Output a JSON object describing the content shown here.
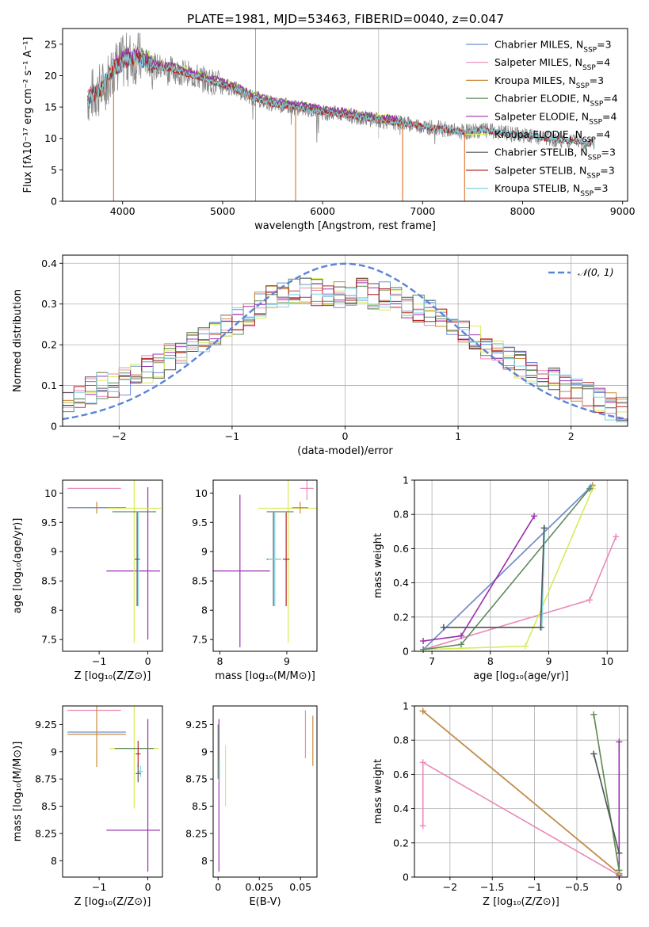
{
  "figure": {
    "title": "PLATE=1981, MJD=53463, FIBERID=0040, z=0.047"
  },
  "colors": {
    "Chabrier MILES": "#6f8fd8",
    "Salpeter MILES": "#e98ab8",
    "Kroupa MILES": "#c98a3a",
    "Chabrier ELODIE": "#5f8a5f",
    "Salpeter ELODIE": "#9b30b0",
    "Kroupa ELODIE": "#d8ec5a",
    "Chabrier STELIB": "#555555",
    "Salpeter STELIB": "#b22222",
    "Kroupa STELIB": "#7fd3e0",
    "data": "#888888",
    "model_orange": "#e07b3a",
    "gaussian": "#5b84d6"
  },
  "chart_data": [
    {
      "id": "spectrum",
      "type": "line",
      "title": "PLATE=1981, MJD=53463, FIBERID=0040, z=0.047",
      "xlabel": "wavelength [Angstrom, rest frame]",
      "ylabel": "Flux [fλ10⁻¹⁷ erg cm⁻² s⁻¹ A⁻¹]",
      "xlim": [
        3400,
        9050
      ],
      "ylim": [
        0,
        27.5
      ],
      "xticks": [
        4000,
        5000,
        6000,
        7000,
        8000,
        9000
      ],
      "yticks": [
        0,
        5,
        10,
        15,
        20,
        25
      ],
      "grid": false,
      "legend_position": "top-right",
      "legend": [
        {
          "label": "Chabrier MILES, N",
          "sub": "SSP",
          "suffix": "=3"
        },
        {
          "label": "Salpeter MILES, N",
          "sub": "SSP",
          "suffix": "=4"
        },
        {
          "label": "Kroupa MILES, N",
          "sub": "SSP",
          "suffix": "=3"
        },
        {
          "label": "Chabrier ELODIE, N",
          "sub": "SSP",
          "suffix": "=4"
        },
        {
          "label": "Salpeter ELODIE, N",
          "sub": "SSP",
          "suffix": "=4"
        },
        {
          "label": "Kroupa ELODIE, N",
          "sub": "SSP",
          "suffix": "=4"
        },
        {
          "label": "Chabrier STELIB, N",
          "sub": "SSP",
          "suffix": "=3"
        },
        {
          "label": "Salpeter STELIB, N",
          "sub": "SSP",
          "suffix": "=3"
        },
        {
          "label": "Kroupa STELIB, N",
          "sub": "SSP",
          "suffix": "=3"
        }
      ],
      "continuum": [
        [
          3650,
          16.5
        ],
        [
          3800,
          18
        ],
        [
          3900,
          21
        ],
        [
          4000,
          22
        ],
        [
          4100,
          23
        ],
        [
          4200,
          22.5
        ],
        [
          4300,
          21.5
        ],
        [
          4500,
          21
        ],
        [
          4700,
          20
        ],
        [
          4900,
          19
        ],
        [
          5100,
          18
        ],
        [
          5300,
          16.5
        ],
        [
          5500,
          15.5
        ],
        [
          5700,
          15
        ],
        [
          6000,
          14.2
        ],
        [
          6300,
          13.6
        ],
        [
          6600,
          12.8
        ],
        [
          6900,
          12.2
        ],
        [
          7200,
          11.5
        ],
        [
          7400,
          11
        ],
        [
          7600,
          11.3
        ],
        [
          8000,
          10.5
        ],
        [
          8400,
          9.7
        ],
        [
          8700,
          9.3
        ]
      ],
      "model_range": [
        3650,
        8700
      ],
      "miles_range": [
        3650,
        7420
      ],
      "elodie_range": [
        3900,
        6800
      ],
      "spikes_down": [
        [
          3910,
          0
        ],
        [
          5730,
          0
        ],
        [
          6800,
          0
        ],
        [
          7420,
          0
        ]
      ]
    },
    {
      "id": "residuals",
      "type": "step",
      "xlabel": "(data-model)/error",
      "ylabel": "Normed distribution",
      "xlim": [
        -2.5,
        2.5
      ],
      "ylim": [
        0,
        0.42
      ],
      "xticks": [
        -2,
        -1,
        0,
        1,
        2
      ],
      "yticks": [
        0.0,
        0.1,
        0.2,
        0.3,
        0.4
      ],
      "grid": true,
      "legend_position": "top-right",
      "legend": [
        "𝒩(0, 1)"
      ],
      "bin_edges_start": -2.5,
      "bin_width": 0.1,
      "base_profile": [
        0.06,
        0.08,
        0.09,
        0.1,
        0.1,
        0.11,
        0.12,
        0.14,
        0.15,
        0.17,
        0.18,
        0.2,
        0.21,
        0.23,
        0.24,
        0.26,
        0.28,
        0.3,
        0.31,
        0.32,
        0.33,
        0.33,
        0.33,
        0.33,
        0.32,
        0.33,
        0.33,
        0.32,
        0.32,
        0.31,
        0.3,
        0.29,
        0.28,
        0.26,
        0.25,
        0.24,
        0.22,
        0.2,
        0.19,
        0.17,
        0.15,
        0.14,
        0.13,
        0.11,
        0.1,
        0.09,
        0.08,
        0.06,
        0.05,
        0.04
      ]
    },
    {
      "id": "age-vs-Z",
      "type": "errorbar",
      "xlabel": "Z [log₁₀(Z/Z⊙)]",
      "ylabel": "age  [log₁₀(age/yr)]",
      "xlim": [
        -1.75,
        0.3
      ],
      "ylim": [
        7.3,
        10.22
      ],
      "xticks": [
        -1,
        0
      ],
      "yticks": [
        7.5,
        8.0,
        8.5,
        9.0,
        9.5,
        10.0
      ],
      "points": [
        {
          "s": "Salpeter MILES",
          "x": -1.1,
          "y": 10.08,
          "xerr": 0.55,
          "yerr": 0.0
        },
        {
          "s": "Kroupa MILES",
          "x": -1.05,
          "y": 9.75,
          "xerr": 0.6,
          "yerr": 0.1
        },
        {
          "s": "Chabrier MILES",
          "x": -1.05,
          "y": 9.75,
          "xerr": 0.6,
          "yerr": 0.0
        },
        {
          "s": "Salpeter ELODIE",
          "x": -0.3,
          "y": 8.67,
          "xerr": 0.55,
          "yerr": 0.0
        },
        {
          "s": "Salpeter ELODIE",
          "x": 0.0,
          "y": 8.8,
          "xerr": 0.0,
          "yerr": 1.3
        },
        {
          "s": "Kroupa ELODIE",
          "x": -0.28,
          "y": 9.74,
          "xerr": 0.55,
          "yerr": 2.3
        },
        {
          "s": "Chabrier ELODIE",
          "x": -0.28,
          "y": 9.68,
          "xerr": 0.45,
          "yerr": 0.0
        },
        {
          "s": "Kroupa STELIB",
          "x": -0.2,
          "y": 8.87,
          "xerr": 0.05,
          "yerr": 0.8
        },
        {
          "s": "Chabrier STELIB",
          "x": -0.22,
          "y": 8.87,
          "xerr": 0.05,
          "yerr": 0.8
        }
      ]
    },
    {
      "id": "age-vs-mass",
      "type": "errorbar",
      "xlabel": "mass [log₁₀(M/M⊙)]",
      "xlim": [
        7.9,
        9.45
      ],
      "ylim": [
        7.3,
        10.22
      ],
      "xticks": [
        8,
        9
      ],
      "yticks": [
        7.5,
        8.0,
        8.5,
        9.0,
        9.5,
        10.0
      ],
      "points": [
        {
          "s": "Salpeter ELODIE",
          "x": 8.3,
          "y": 8.67,
          "xerr": 0.45,
          "yerr": 1.3
        },
        {
          "s": "Kroupa ELODIE",
          "x": 9.02,
          "y": 9.74,
          "xerr": 0.45,
          "yerr": 2.3
        },
        {
          "s": "Kroupa MILES",
          "x": 9.2,
          "y": 9.75,
          "xerr": 0.12,
          "yerr": 0.1
        },
        {
          "s": "Salpeter MILES",
          "x": 9.3,
          "y": 10.08,
          "xerr": 0.1,
          "yerr": 0.2
        },
        {
          "s": "Chabrier ELODIE",
          "x": 8.9,
          "y": 9.68,
          "xerr": 0.2,
          "yerr": 0.0
        },
        {
          "s": "Salpeter STELIB",
          "x": 8.99,
          "y": 8.87,
          "xerr": 0.05,
          "yerr": 0.8
        },
        {
          "s": "Chabrier STELIB",
          "x": 8.8,
          "y": 8.87,
          "xerr": 0.1,
          "yerr": 0.8
        },
        {
          "s": "Kroupa STELIB",
          "x": 8.82,
          "y": 8.87,
          "xerr": 0.1,
          "yerr": 0.8
        }
      ]
    },
    {
      "id": "weight-vs-age",
      "type": "line",
      "xlabel": "age  [log₁₀(age/yr)]",
      "ylabel": "mass weight",
      "xlim": [
        6.7,
        10.35
      ],
      "ylim": [
        0,
        1.0
      ],
      "xticks": [
        7,
        8,
        9,
        10
      ],
      "yticks": [
        0.0,
        0.2,
        0.4,
        0.6,
        0.8,
        1.0
      ],
      "grid": true,
      "series": [
        {
          "s": "Salpeter MILES",
          "x": [
            6.85,
            9.7,
            10.15
          ],
          "y": [
            0.01,
            0.3,
            0.67
          ]
        },
        {
          "s": "Kroupa MILES",
          "x": [
            6.85,
            9.75
          ],
          "y": [
            0.01,
            0.97
          ]
        },
        {
          "s": "Chabrier MILES",
          "x": [
            6.85,
            9.72
          ],
          "y": [
            0.01,
            0.96
          ]
        },
        {
          "s": "Salpeter ELODIE",
          "x": [
            6.85,
            7.5,
            8.75
          ],
          "y": [
            0.06,
            0.09,
            0.79
          ]
        },
        {
          "s": "Kroupa ELODIE",
          "x": [
            6.85,
            8.6,
            9.75
          ],
          "y": [
            0.01,
            0.03,
            0.95
          ]
        },
        {
          "s": "Chabrier ELODIE",
          "x": [
            6.85,
            7.5,
            9.7
          ],
          "y": [
            0.01,
            0.04,
            0.95
          ]
        },
        {
          "s": "Kroupa STELIB",
          "x": [
            7.2,
            8.88,
            8.93
          ],
          "y": [
            0.14,
            0.14,
            0.72
          ]
        },
        {
          "s": "Chabrier STELIB",
          "x": [
            7.2,
            8.86,
            8.92
          ],
          "y": [
            0.14,
            0.14,
            0.72
          ]
        }
      ]
    },
    {
      "id": "mass-vs-Z",
      "type": "errorbar",
      "xlabel": "Z [log₁₀(Z/Z⊙)]",
      "ylabel": "mass [log₁₀(M/M⊙)]",
      "xlim": [
        -1.75,
        0.3
      ],
      "ylim": [
        7.85,
        9.42
      ],
      "xticks": [
        -1,
        0
      ],
      "yticks": [
        8.0,
        8.25,
        8.5,
        8.75,
        9.0,
        9.25
      ],
      "points": [
        {
          "s": "Salpeter MILES",
          "x": -1.1,
          "y": 9.38,
          "xerr": 0.55,
          "yerr": 0.0
        },
        {
          "s": "Chabrier MILES",
          "x": -1.05,
          "y": 9.18,
          "xerr": 0.6,
          "yerr": 0.0
        },
        {
          "s": "Kroupa MILES",
          "x": -1.05,
          "y": 9.16,
          "xerr": 0.6,
          "yerr": 0.3
        },
        {
          "s": "Salpeter ELODIE",
          "x": -0.3,
          "y": 8.28,
          "xerr": 0.55,
          "yerr": 0.0
        },
        {
          "s": "Salpeter ELODIE",
          "x": 0.0,
          "y": 8.6,
          "xerr": 0.0,
          "yerr": 0.7
        },
        {
          "s": "Kroupa ELODIE",
          "x": -0.28,
          "y": 9.03,
          "xerr": 0.5,
          "yerr": 0.55
        },
        {
          "s": "Chabrier ELODIE",
          "x": -0.28,
          "y": 9.03,
          "xerr": 0.4,
          "yerr": 0.0
        },
        {
          "s": "Salpeter STELIB",
          "x": -0.2,
          "y": 8.98,
          "xerr": 0.05,
          "yerr": 0.12
        },
        {
          "s": "Kroupa STELIB",
          "x": -0.15,
          "y": 8.82,
          "xerr": 0.05,
          "yerr": 0.05
        },
        {
          "s": "Chabrier STELIB",
          "x": -0.2,
          "y": 8.8,
          "xerr": 0.05,
          "yerr": 0.08
        }
      ]
    },
    {
      "id": "mass-vs-EBV",
      "type": "errorbar",
      "xlabel": "E(B-V)",
      "xlim": [
        -0.003,
        0.06
      ],
      "ylim": [
        7.85,
        9.42
      ],
      "xticks": [
        0.0,
        0.025,
        0.05
      ],
      "yticks": [
        8.0,
        8.25,
        8.5,
        8.75,
        9.0,
        9.25
      ],
      "points": [
        {
          "s": "Salpeter ELODIE",
          "x": 0.0005,
          "y": 8.6,
          "xerr": 0.0,
          "yerr": 0.7
        },
        {
          "s": "Chabrier ELODIE",
          "x": 0.0,
          "y": 9.0,
          "xerr": 0.0,
          "yerr": 0.25
        },
        {
          "s": "Kroupa ELODIE",
          "x": 0.0045,
          "y": 8.78,
          "xerr": 0.0,
          "yerr": 0.28
        },
        {
          "s": "Kroupa STELIB",
          "x": 0.0008,
          "y": 8.82,
          "xerr": 0.0,
          "yerr": 0.1
        },
        {
          "s": "Salpeter MILES",
          "x": 0.053,
          "y": 9.16,
          "xerr": 0.0,
          "yerr": 0.22
        },
        {
          "s": "Kroupa MILES",
          "x": 0.0575,
          "y": 9.1,
          "xerr": 0.0,
          "yerr": 0.23
        }
      ]
    },
    {
      "id": "weight-vs-Z",
      "type": "line",
      "xlabel": "Z [log₁₀(Z/Z⊙)]",
      "ylabel": "mass weight",
      "xlim": [
        -2.42,
        0.1
      ],
      "ylim": [
        0,
        1.0
      ],
      "xticks": [
        -2.0,
        -1.5,
        -1.0,
        -0.5,
        0.0
      ],
      "yticks": [
        0.0,
        0.2,
        0.4,
        0.6,
        0.8,
        1.0
      ],
      "grid": true,
      "series": [
        {
          "s": "Salpeter MILES",
          "x": [
            -2.32,
            -2.32,
            0.0
          ],
          "y": [
            0.3,
            0.67,
            0.01
          ]
        },
        {
          "s": "Chabrier MILES",
          "x": [
            -2.32,
            0.0
          ],
          "y": [
            0.97,
            0.02
          ]
        },
        {
          "s": "Kroupa MILES",
          "x": [
            -2.32,
            0.0
          ],
          "y": [
            0.97,
            0.02
          ]
        },
        {
          "s": "Salpeter ELODIE",
          "x": [
            0.0,
            0.0
          ],
          "y": [
            0.79,
            0.01
          ]
        },
        {
          "s": "Kroupa ELODIE",
          "x": [
            -0.3,
            0.0
          ],
          "y": [
            0.95,
            0.03
          ]
        },
        {
          "s": "Chabrier ELODIE",
          "x": [
            -0.3,
            0.0
          ],
          "y": [
            0.95,
            0.04
          ]
        },
        {
          "s": "Kroupa STELIB",
          "x": [
            -0.3,
            0.0
          ],
          "y": [
            0.72,
            0.14
          ]
        },
        {
          "s": "Chabrier STELIB",
          "x": [
            -0.3,
            0.0
          ],
          "y": [
            0.72,
            0.14
          ]
        }
      ]
    }
  ]
}
